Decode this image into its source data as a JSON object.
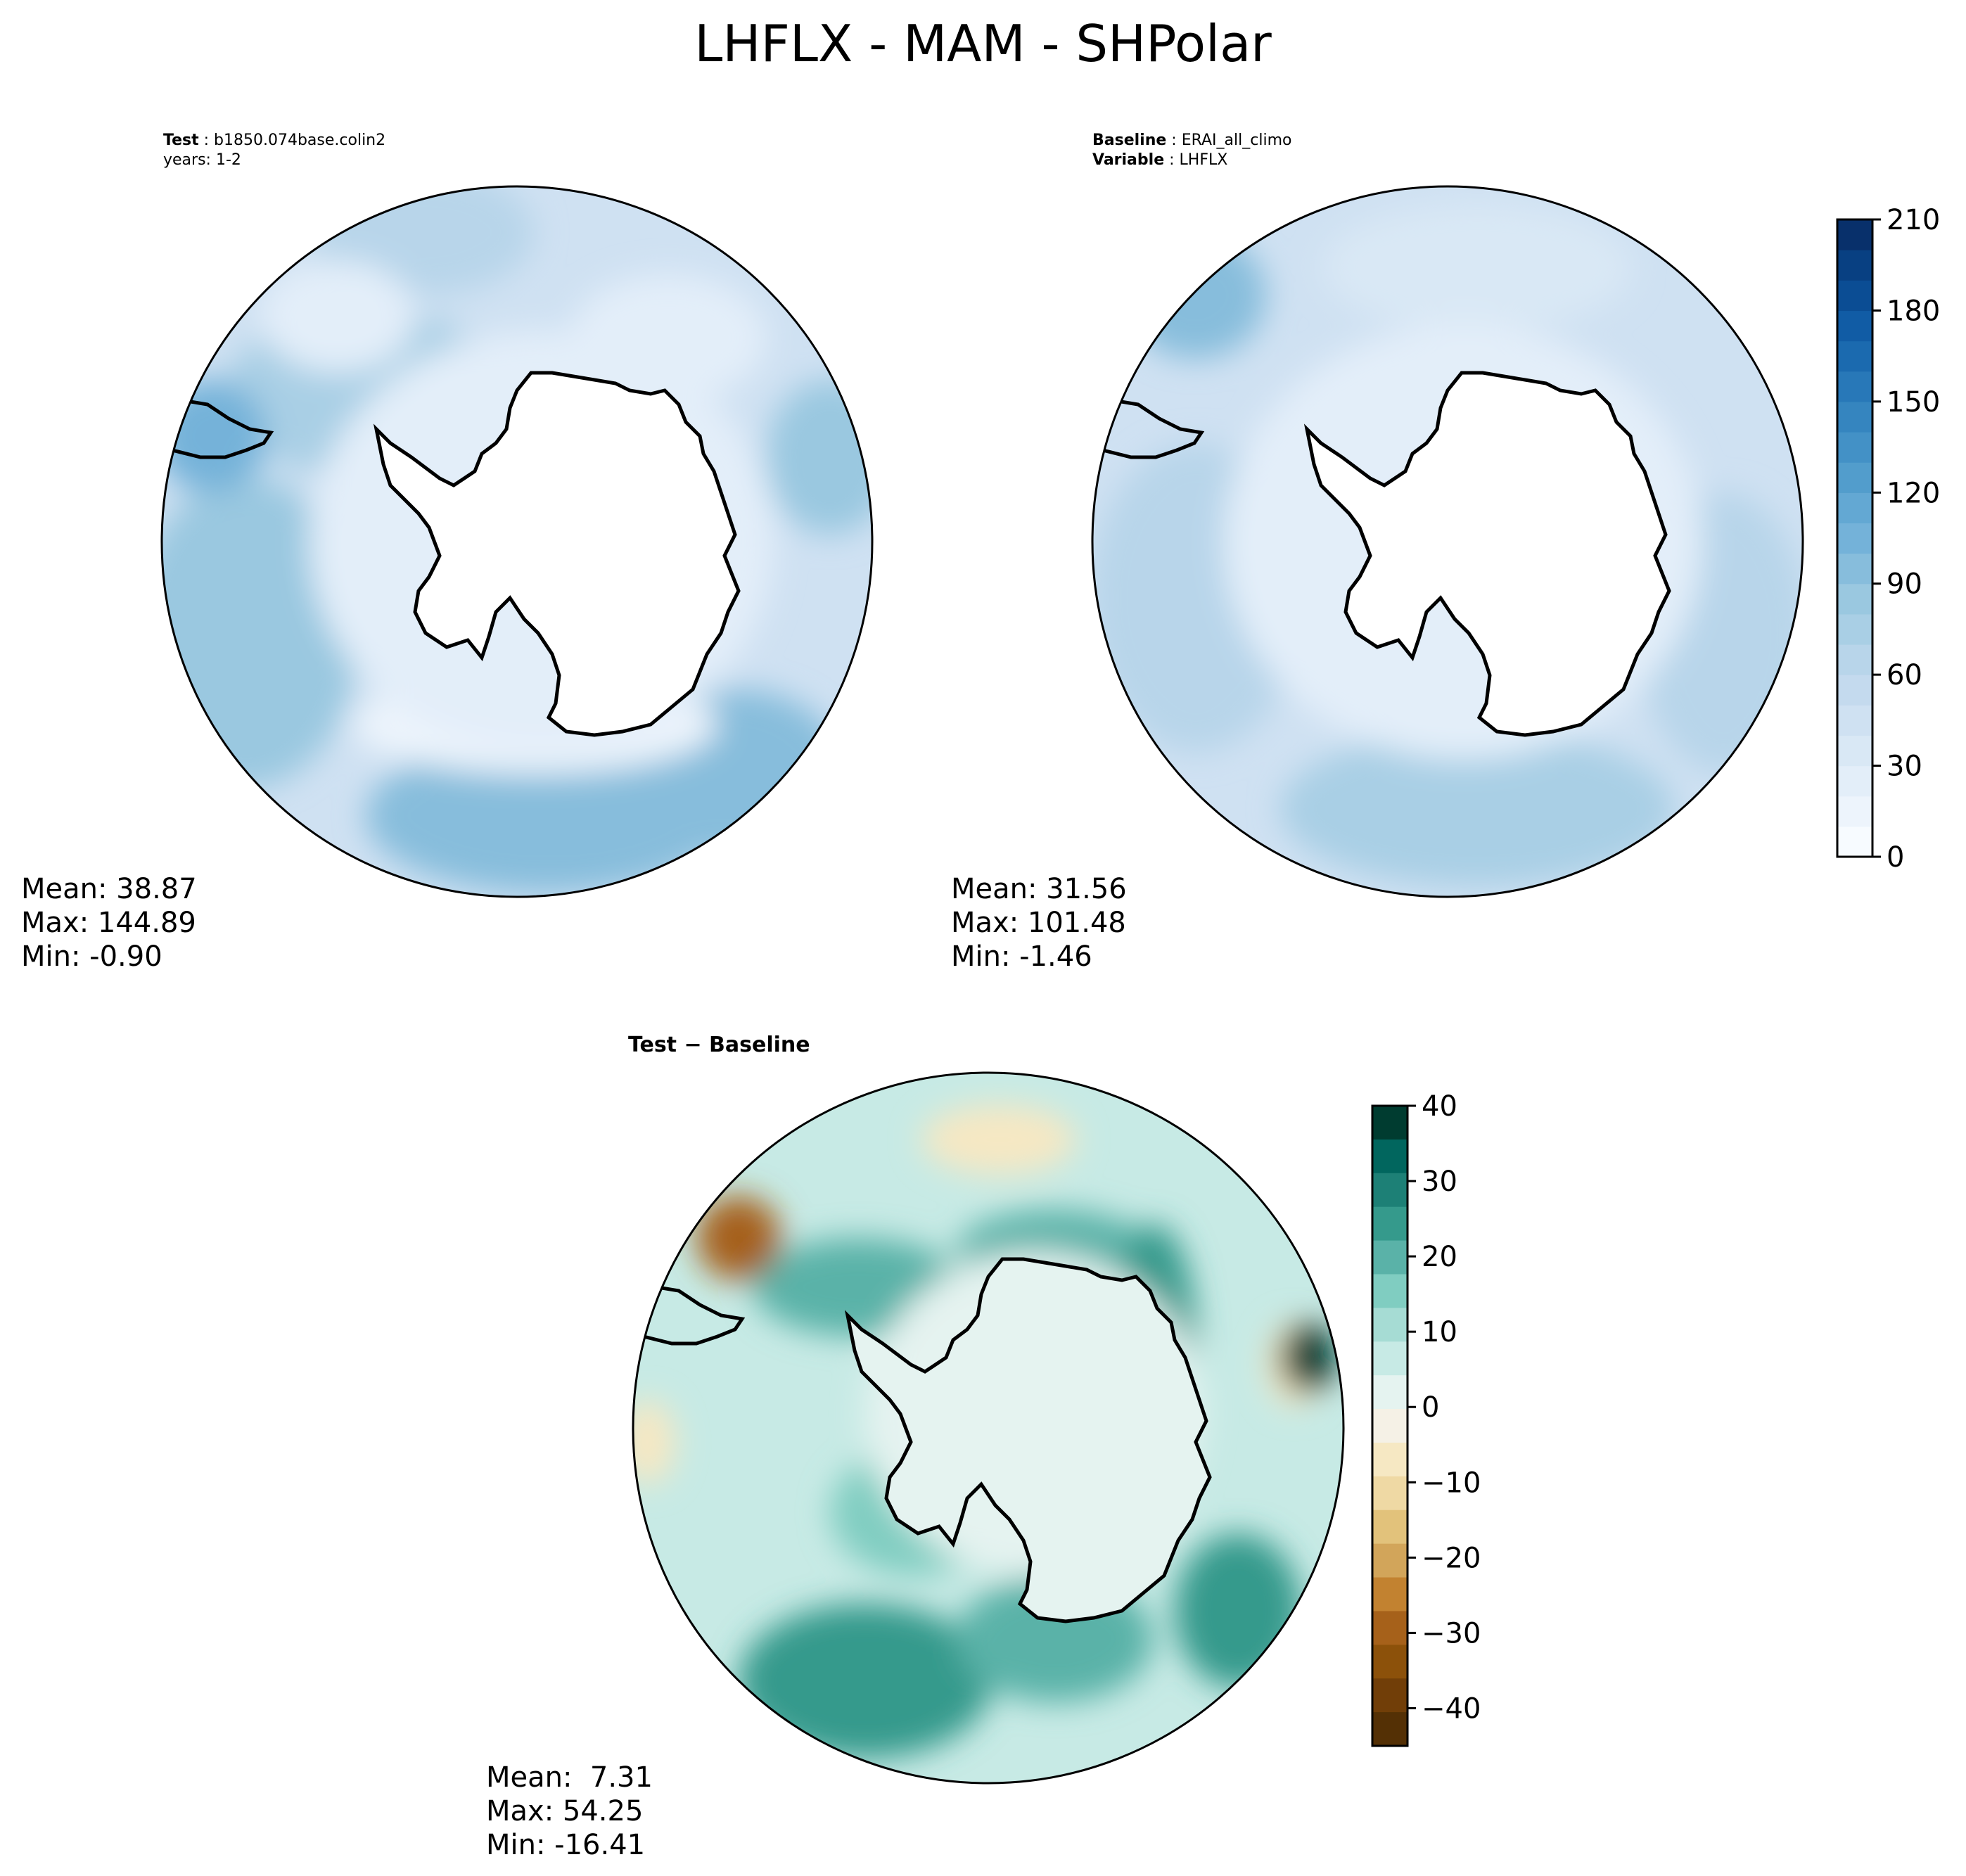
{
  "figure": {
    "title": "LHFLX - MAM - SHPolar"
  },
  "panels": {
    "test": {
      "label_key": "Test",
      "label_value": "b1850.074base.colin2",
      "line2": "years: 1-2",
      "stats": {
        "mean": "Mean: 38.87",
        "max": "Max: 144.89",
        "min": "Min: -0.90"
      }
    },
    "baseline": {
      "label_key": "Baseline",
      "label_value": "ERAI_all_climo",
      "var_key": "Variable",
      "var_value": "LHFLX",
      "stats": {
        "mean": "Mean: 31.56",
        "max": "Max: 101.48",
        "min": "Min: -1.46"
      }
    },
    "diff": {
      "title": "Test − Baseline",
      "stats": {
        "mean": "Mean:  7.31",
        "max": "Max: 54.25",
        "min": "Min: -16.41"
      }
    }
  },
  "colorbars": {
    "main": {
      "ticks": [
        "0",
        "30",
        "60",
        "90",
        "120",
        "150",
        "180",
        "210"
      ],
      "levels": 21,
      "colors": [
        "#f7fbff",
        "#edf4fc",
        "#e3eef9",
        "#d9e8f5",
        "#cfe1f2",
        "#c4daee",
        "#b8d5ea",
        "#a9cfe5",
        "#9ac8e0",
        "#87bddc",
        "#74b2d9",
        "#63a8d3",
        "#529dcc",
        "#4391c6",
        "#3585bf",
        "#2878b8",
        "#1b6aaf",
        "#115ca5",
        "#0b4d94",
        "#084082",
        "#08306b"
      ]
    },
    "diff": {
      "ticks": [
        "40",
        "30",
        "20",
        "10",
        "0",
        "−10",
        "−20",
        "−30",
        "−40"
      ],
      "colors_top_to_bottom": [
        "#003c30",
        "#01665e",
        "#1d8076",
        "#359a8c",
        "#5ab2a8",
        "#80cdc1",
        "#a6dcd4",
        "#c7eae5",
        "#e5f3f0",
        "#f5f1e6",
        "#f6e8c3",
        "#efd9a4",
        "#e2c27b",
        "#d2a55a",
        "#c28230",
        "#a6611a",
        "#8c510a",
        "#713e08",
        "#543005"
      ]
    }
  },
  "map_colors": {
    "land": "#ffffff",
    "coast": "#000000",
    "base_fill": "#cfe1f2",
    "diff_fill": "#c7eae5"
  }
}
